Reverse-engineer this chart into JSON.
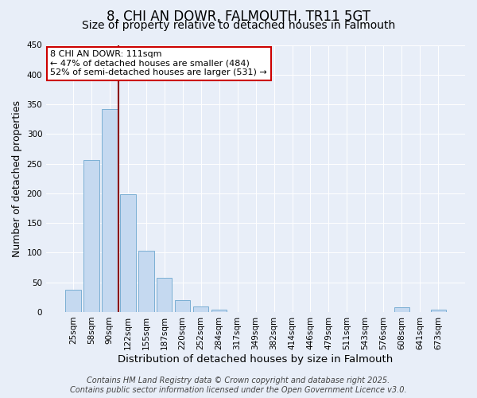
{
  "title": "8, CHI AN DOWR, FALMOUTH, TR11 5GT",
  "subtitle": "Size of property relative to detached houses in Falmouth",
  "xlabel": "Distribution of detached houses by size in Falmouth",
  "ylabel": "Number of detached properties",
  "bar_labels": [
    "25sqm",
    "58sqm",
    "90sqm",
    "122sqm",
    "155sqm",
    "187sqm",
    "220sqm",
    "252sqm",
    "284sqm",
    "317sqm",
    "349sqm",
    "382sqm",
    "414sqm",
    "446sqm",
    "479sqm",
    "511sqm",
    "543sqm",
    "576sqm",
    "608sqm",
    "641sqm",
    "673sqm"
  ],
  "bar_values": [
    37,
    256,
    342,
    199,
    103,
    57,
    20,
    10,
    4,
    0,
    0,
    0,
    0,
    0,
    0,
    0,
    0,
    0,
    8,
    0,
    4
  ],
  "bar_color": "#c5d9f0",
  "bar_edge_color": "#7bafd4",
  "vline_x_index": 2.5,
  "vline_color": "#8b0000",
  "annotation_line1": "8 CHI AN DOWR: 111sqm",
  "annotation_line2": "← 47% of detached houses are smaller (484)",
  "annotation_line3": "52% of semi-detached houses are larger (531) →",
  "annotation_box_color": "#ffffff",
  "annotation_box_edge": "#cc0000",
  "ylim": [
    0,
    450
  ],
  "yticks": [
    0,
    50,
    100,
    150,
    200,
    250,
    300,
    350,
    400,
    450
  ],
  "bg_color": "#e8eef8",
  "plot_bg_color": "#e8eef8",
  "footer": "Contains HM Land Registry data © Crown copyright and database right 2025.\nContains public sector information licensed under the Open Government Licence v3.0.",
  "title_fontsize": 12,
  "subtitle_fontsize": 10,
  "xlabel_fontsize": 9.5,
  "ylabel_fontsize": 9,
  "tick_fontsize": 7.5,
  "footer_fontsize": 7,
  "annot_fontsize": 8
}
